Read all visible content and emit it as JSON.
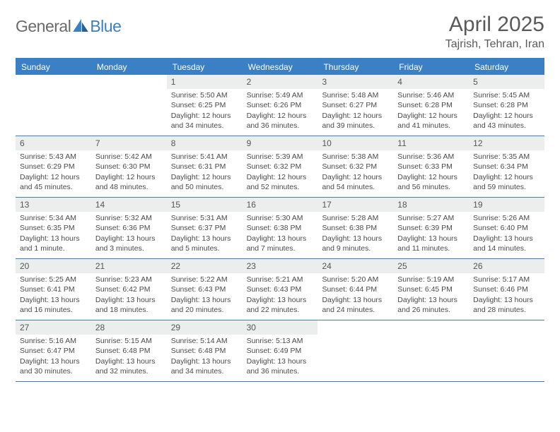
{
  "logo": {
    "text_general": "General",
    "text_blue": "Blue"
  },
  "title": "April 2025",
  "location": "Tajrish, Tehran, Iran",
  "colors": {
    "brand_blue": "#3b7fc4",
    "header_text": "#5a5a5a",
    "cell_bg": "#eceded",
    "body_text": "#4a4a4a"
  },
  "weekdays": [
    "Sunday",
    "Monday",
    "Tuesday",
    "Wednesday",
    "Thursday",
    "Friday",
    "Saturday"
  ],
  "weeks": [
    [
      {
        "blank": true
      },
      {
        "blank": true
      },
      {
        "day": "1",
        "sunrise": "Sunrise: 5:50 AM",
        "sunset": "Sunset: 6:25 PM",
        "daylight": "Daylight: 12 hours and 34 minutes."
      },
      {
        "day": "2",
        "sunrise": "Sunrise: 5:49 AM",
        "sunset": "Sunset: 6:26 PM",
        "daylight": "Daylight: 12 hours and 36 minutes."
      },
      {
        "day": "3",
        "sunrise": "Sunrise: 5:48 AM",
        "sunset": "Sunset: 6:27 PM",
        "daylight": "Daylight: 12 hours and 39 minutes."
      },
      {
        "day": "4",
        "sunrise": "Sunrise: 5:46 AM",
        "sunset": "Sunset: 6:28 PM",
        "daylight": "Daylight: 12 hours and 41 minutes."
      },
      {
        "day": "5",
        "sunrise": "Sunrise: 5:45 AM",
        "sunset": "Sunset: 6:28 PM",
        "daylight": "Daylight: 12 hours and 43 minutes."
      }
    ],
    [
      {
        "day": "6",
        "sunrise": "Sunrise: 5:43 AM",
        "sunset": "Sunset: 6:29 PM",
        "daylight": "Daylight: 12 hours and 45 minutes."
      },
      {
        "day": "7",
        "sunrise": "Sunrise: 5:42 AM",
        "sunset": "Sunset: 6:30 PM",
        "daylight": "Daylight: 12 hours and 48 minutes."
      },
      {
        "day": "8",
        "sunrise": "Sunrise: 5:41 AM",
        "sunset": "Sunset: 6:31 PM",
        "daylight": "Daylight: 12 hours and 50 minutes."
      },
      {
        "day": "9",
        "sunrise": "Sunrise: 5:39 AM",
        "sunset": "Sunset: 6:32 PM",
        "daylight": "Daylight: 12 hours and 52 minutes."
      },
      {
        "day": "10",
        "sunrise": "Sunrise: 5:38 AM",
        "sunset": "Sunset: 6:32 PM",
        "daylight": "Daylight: 12 hours and 54 minutes."
      },
      {
        "day": "11",
        "sunrise": "Sunrise: 5:36 AM",
        "sunset": "Sunset: 6:33 PM",
        "daylight": "Daylight: 12 hours and 56 minutes."
      },
      {
        "day": "12",
        "sunrise": "Sunrise: 5:35 AM",
        "sunset": "Sunset: 6:34 PM",
        "daylight": "Daylight: 12 hours and 59 minutes."
      }
    ],
    [
      {
        "day": "13",
        "sunrise": "Sunrise: 5:34 AM",
        "sunset": "Sunset: 6:35 PM",
        "daylight": "Daylight: 13 hours and 1 minute."
      },
      {
        "day": "14",
        "sunrise": "Sunrise: 5:32 AM",
        "sunset": "Sunset: 6:36 PM",
        "daylight": "Daylight: 13 hours and 3 minutes."
      },
      {
        "day": "15",
        "sunrise": "Sunrise: 5:31 AM",
        "sunset": "Sunset: 6:37 PM",
        "daylight": "Daylight: 13 hours and 5 minutes."
      },
      {
        "day": "16",
        "sunrise": "Sunrise: 5:30 AM",
        "sunset": "Sunset: 6:38 PM",
        "daylight": "Daylight: 13 hours and 7 minutes."
      },
      {
        "day": "17",
        "sunrise": "Sunrise: 5:28 AM",
        "sunset": "Sunset: 6:38 PM",
        "daylight": "Daylight: 13 hours and 9 minutes."
      },
      {
        "day": "18",
        "sunrise": "Sunrise: 5:27 AM",
        "sunset": "Sunset: 6:39 PM",
        "daylight": "Daylight: 13 hours and 11 minutes."
      },
      {
        "day": "19",
        "sunrise": "Sunrise: 5:26 AM",
        "sunset": "Sunset: 6:40 PM",
        "daylight": "Daylight: 13 hours and 14 minutes."
      }
    ],
    [
      {
        "day": "20",
        "sunrise": "Sunrise: 5:25 AM",
        "sunset": "Sunset: 6:41 PM",
        "daylight": "Daylight: 13 hours and 16 minutes."
      },
      {
        "day": "21",
        "sunrise": "Sunrise: 5:23 AM",
        "sunset": "Sunset: 6:42 PM",
        "daylight": "Daylight: 13 hours and 18 minutes."
      },
      {
        "day": "22",
        "sunrise": "Sunrise: 5:22 AM",
        "sunset": "Sunset: 6:43 PM",
        "daylight": "Daylight: 13 hours and 20 minutes."
      },
      {
        "day": "23",
        "sunrise": "Sunrise: 5:21 AM",
        "sunset": "Sunset: 6:43 PM",
        "daylight": "Daylight: 13 hours and 22 minutes."
      },
      {
        "day": "24",
        "sunrise": "Sunrise: 5:20 AM",
        "sunset": "Sunset: 6:44 PM",
        "daylight": "Daylight: 13 hours and 24 minutes."
      },
      {
        "day": "25",
        "sunrise": "Sunrise: 5:19 AM",
        "sunset": "Sunset: 6:45 PM",
        "daylight": "Daylight: 13 hours and 26 minutes."
      },
      {
        "day": "26",
        "sunrise": "Sunrise: 5:17 AM",
        "sunset": "Sunset: 6:46 PM",
        "daylight": "Daylight: 13 hours and 28 minutes."
      }
    ],
    [
      {
        "day": "27",
        "sunrise": "Sunrise: 5:16 AM",
        "sunset": "Sunset: 6:47 PM",
        "daylight": "Daylight: 13 hours and 30 minutes."
      },
      {
        "day": "28",
        "sunrise": "Sunrise: 5:15 AM",
        "sunset": "Sunset: 6:48 PM",
        "daylight": "Daylight: 13 hours and 32 minutes."
      },
      {
        "day": "29",
        "sunrise": "Sunrise: 5:14 AM",
        "sunset": "Sunset: 6:48 PM",
        "daylight": "Daylight: 13 hours and 34 minutes."
      },
      {
        "day": "30",
        "sunrise": "Sunrise: 5:13 AM",
        "sunset": "Sunset: 6:49 PM",
        "daylight": "Daylight: 13 hours and 36 minutes."
      },
      {
        "blank": true
      },
      {
        "blank": true
      },
      {
        "blank": true
      }
    ]
  ]
}
